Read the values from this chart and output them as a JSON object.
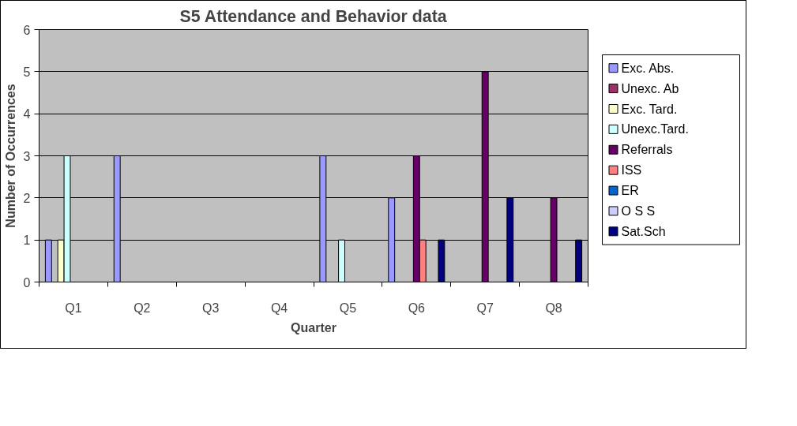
{
  "chart_data": {
    "type": "bar",
    "title": "S5 Attendance and Behavior data",
    "xlabel": "Quarter",
    "ylabel": "Number of Occurrences",
    "categories": [
      "Q1",
      "Q2",
      "Q3",
      "Q4",
      "Q5",
      "Q6",
      "Q7",
      "Q8"
    ],
    "series": [
      {
        "name": "Exc. Abs.",
        "color": "#9999ff",
        "values": [
          1,
          3,
          0,
          0,
          3,
          2,
          0,
          0
        ]
      },
      {
        "name": "Unexc. Ab",
        "color": "#993366",
        "values": [
          0,
          0,
          0,
          0,
          0,
          0,
          0,
          0
        ]
      },
      {
        "name": "Exc. Tard.",
        "color": "#ffffcc",
        "values": [
          1,
          0,
          0,
          0,
          0,
          0,
          0,
          0
        ]
      },
      {
        "name": "Unexc.Tard.",
        "color": "#ccffff",
        "values": [
          3,
          0,
          0,
          0,
          1,
          0,
          0,
          0
        ]
      },
      {
        "name": "Referrals",
        "color": "#660066",
        "values": [
          0,
          0,
          0,
          0,
          0,
          3,
          5,
          2
        ]
      },
      {
        "name": "ISS",
        "color": "#ff8080",
        "values": [
          0,
          0,
          0,
          0,
          0,
          1,
          0,
          0
        ]
      },
      {
        "name": "ER",
        "color": "#0066cc",
        "values": [
          0,
          0,
          0,
          0,
          0,
          0,
          0,
          0
        ]
      },
      {
        "name": "O S S",
        "color": "#ccccff",
        "values": [
          0,
          0,
          0,
          0,
          0,
          0,
          0,
          0
        ]
      },
      {
        "name": "Sat.Sch",
        "color": "#000080",
        "values": [
          0,
          0,
          0,
          0,
          0,
          1,
          2,
          1
        ]
      }
    ],
    "ylim": [
      0,
      6
    ],
    "yticks": [
      0,
      1,
      2,
      3,
      4,
      5,
      6
    ],
    "grid": "y",
    "legend": "right"
  }
}
